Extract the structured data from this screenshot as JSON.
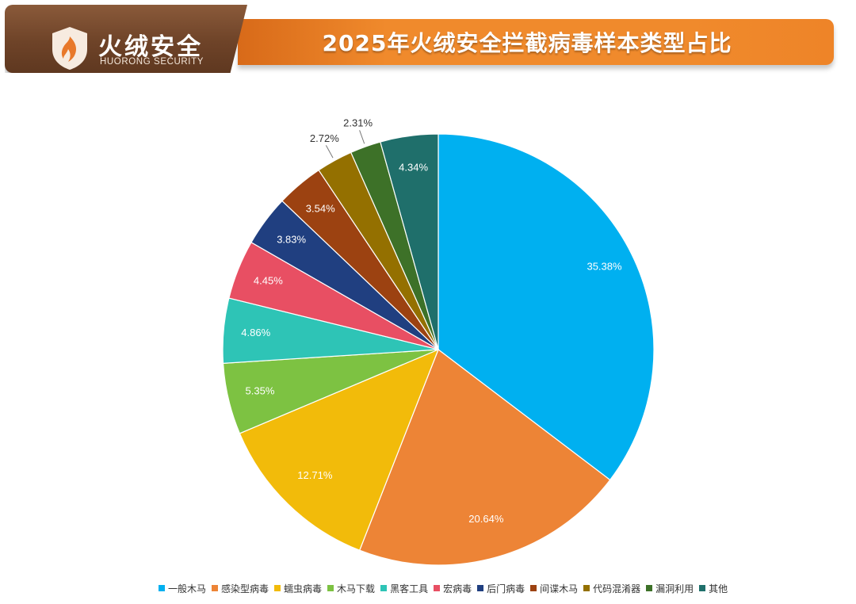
{
  "header": {
    "title": "2025年火绒安全拦截病毒样本类型占比",
    "logo_text": "火绒安全",
    "logo_subtext": "HUORONG SECURITY"
  },
  "chart_data": {
    "type": "pie",
    "title": "2025年火绒安全拦截病毒样本类型占比",
    "legend_position": "bottom",
    "slices": [
      {
        "name": "一般木马",
        "value": 35.38,
        "label": "35.38%",
        "color": "#00b0f0"
      },
      {
        "name": "感染型病毒",
        "value": 20.64,
        "label": "20.64%",
        "color": "#ed8436"
      },
      {
        "name": "蠕虫病毒",
        "value": 12.71,
        "label": "12.71%",
        "color": "#f2bb0a"
      },
      {
        "name": "木马下载",
        "value": 5.35,
        "label": "5.35%",
        "color": "#7dc242"
      },
      {
        "name": "黑客工具",
        "value": 4.86,
        "label": "4.86%",
        "color": "#2ec4b6"
      },
      {
        "name": "宏病毒",
        "value": 4.45,
        "label": "4.45%",
        "color": "#e84f63"
      },
      {
        "name": "后门病毒",
        "value": 3.83,
        "label": "3.83%",
        "color": "#203f80"
      },
      {
        "name": "间谍木马",
        "value": 3.54,
        "label": "3.54%",
        "color": "#9c4211"
      },
      {
        "name": "代码混淆器",
        "value": 2.72,
        "label": "2.72%",
        "color": "#947000"
      },
      {
        "name": "漏洞利用",
        "value": 2.31,
        "label": "2.31%",
        "color": "#3d7128"
      },
      {
        "name": "其他",
        "value": 4.34,
        "label": "4.34%",
        "color": "#1f6f6b"
      }
    ]
  }
}
